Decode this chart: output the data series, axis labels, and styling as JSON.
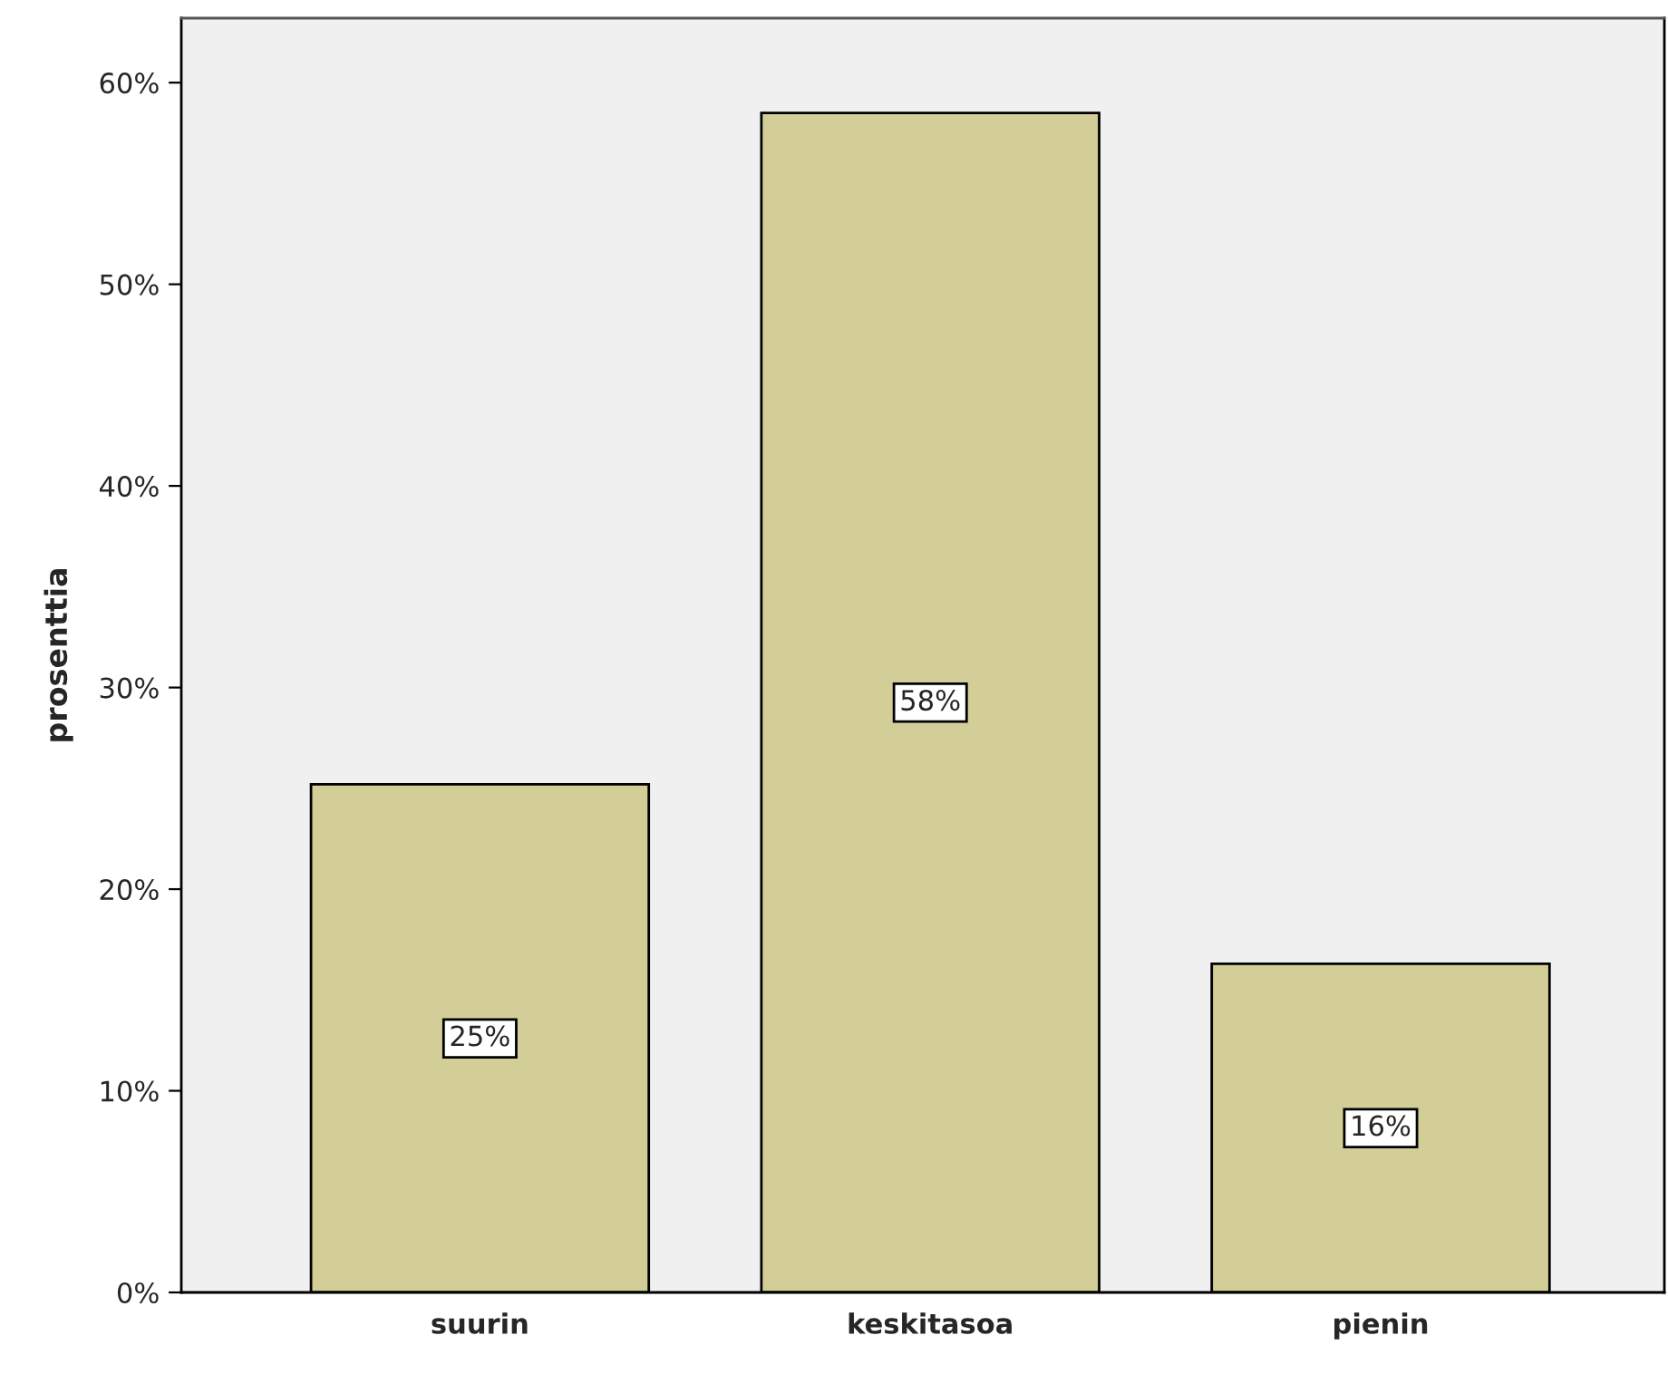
{
  "chart_data": {
    "type": "bar",
    "ylabel": "prosenttia",
    "categories": [
      "suurin",
      "keskitasoa",
      "pienin"
    ],
    "values": [
      25.2,
      58.5,
      16.3
    ],
    "value_labels": [
      "25%",
      "58%",
      "16%"
    ],
    "color": "#d3ce97",
    "ylim": [
      0,
      63.2
    ],
    "yticks": [
      {
        "value": 0,
        "label": "0%"
      },
      {
        "value": 10,
        "label": "10%"
      },
      {
        "value": 20,
        "label": "20%"
      },
      {
        "value": 30,
        "label": "30%"
      },
      {
        "value": 40,
        "label": "40%"
      },
      {
        "value": 50,
        "label": "50%"
      },
      {
        "value": 60,
        "label": "60%"
      }
    ],
    "grid": false,
    "legend": false
  }
}
